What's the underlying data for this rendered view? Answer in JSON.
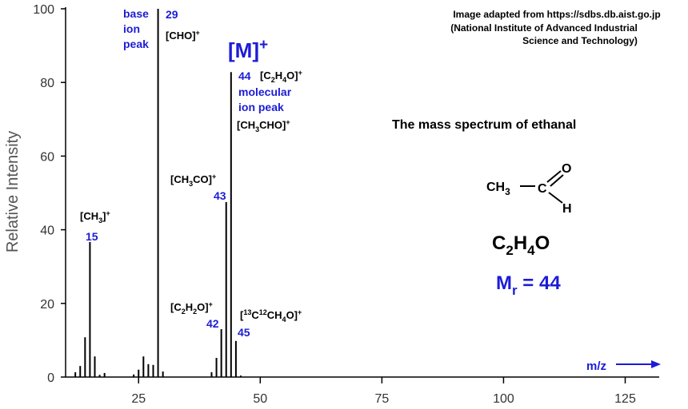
{
  "chart_data": {
    "type": "bar",
    "color": "#000000",
    "y_label": "Relative Intensity",
    "x": [
      12,
      13,
      14,
      15,
      16,
      17,
      18,
      24,
      25,
      26,
      27,
      28,
      29,
      30,
      40,
      41,
      42,
      43,
      44,
      45,
      46
    ],
    "values": [
      1.3,
      3,
      10.8,
      36.7,
      5.6,
      0.6,
      1.1,
      0.7,
      2,
      5.6,
      3.5,
      3.3,
      100,
      1.5,
      1.3,
      5.2,
      13,
      47.5,
      82.8,
      9.8,
      0.4
    ],
    "xlim": [
      10,
      131
    ],
    "xticks": [
      25,
      50,
      75,
      100,
      125
    ],
    "ylim": [
      0,
      100
    ],
    "yticks": [
      0,
      20,
      40,
      60,
      80,
      100
    ],
    "annotations": [
      {
        "parts": [
          [
            "base",
            "base"
          ]
        ],
        "color": "#1c1cd6"
      },
      {
        "parts": [
          [
            "ion",
            "base"
          ]
        ],
        "color": "#1c1cd6"
      },
      {
        "parts": [
          [
            "peak",
            "base"
          ]
        ],
        "color": "#1c1cd6"
      },
      {
        "parts": [
          [
            "29",
            "base"
          ]
        ],
        "color": "#1c1cd6"
      },
      {
        "parts": [
          [
            "[CHO]",
            "base"
          ],
          [
            "+",
            "sup"
          ]
        ],
        "color": "#000000"
      },
      {
        "parts": [
          [
            "[M]",
            "base"
          ],
          [
            "+",
            "sup"
          ]
        ],
        "color": "#1c1cd6"
      },
      {
        "parts": [
          [
            "44",
            "base"
          ]
        ],
        "color": "#1c1cd6"
      },
      {
        "parts": [
          [
            "[C",
            "base"
          ],
          [
            "2",
            "sub"
          ],
          [
            "H",
            "base"
          ],
          [
            "4",
            "sub"
          ],
          [
            "O]",
            "base"
          ],
          [
            "+",
            "sup"
          ]
        ],
        "color": "#000000"
      },
      {
        "parts": [
          [
            "molecular",
            "base"
          ]
        ],
        "color": "#1c1cd6"
      },
      {
        "parts": [
          [
            "ion peak",
            "base"
          ]
        ],
        "color": "#1c1cd6"
      },
      {
        "parts": [
          [
            "[CH",
            "base"
          ],
          [
            "3",
            "sub"
          ],
          [
            "CHO]",
            "base"
          ],
          [
            "+",
            "sup"
          ]
        ],
        "color": "#000000"
      },
      {
        "parts": [
          [
            "[CH",
            "base"
          ],
          [
            "3",
            "sub"
          ],
          [
            "CO]",
            "base"
          ],
          [
            "+",
            "sup"
          ]
        ],
        "color": "#000000"
      },
      {
        "parts": [
          [
            "43",
            "base"
          ]
        ],
        "color": "#1c1cd6"
      },
      {
        "parts": [
          [
            "[CH",
            "base"
          ],
          [
            "3",
            "sub"
          ],
          [
            "]",
            "base"
          ],
          [
            "+",
            "sup"
          ]
        ],
        "color": "#000000"
      },
      {
        "parts": [
          [
            "15",
            "base"
          ]
        ],
        "color": "#1c1cd6"
      },
      {
        "parts": [
          [
            "[C",
            "base"
          ],
          [
            "2",
            "sub"
          ],
          [
            "H",
            "base"
          ],
          [
            "2",
            "sub"
          ],
          [
            "O]",
            "base"
          ],
          [
            "+",
            "sup"
          ]
        ],
        "color": "#000000"
      },
      {
        "parts": [
          [
            "42",
            "base"
          ]
        ],
        "color": "#1c1cd6"
      },
      {
        "parts": [
          [
            "[",
            "base"
          ],
          [
            "13",
            "sup"
          ],
          [
            "C",
            "base"
          ],
          [
            "12",
            "sup"
          ],
          [
            "CH",
            "base"
          ],
          [
            "4",
            "sub"
          ],
          [
            "O]",
            "base"
          ],
          [
            "+",
            "sup"
          ]
        ],
        "color": "#000000"
      },
      {
        "parts": [
          [
            "45",
            "base"
          ]
        ],
        "color": "#1c1cd6"
      },
      {
        "parts": [
          [
            "Image adapted from https://sdbs.db.aist.go.jp",
            "base"
          ]
        ],
        "color": "#000000"
      },
      {
        "parts": [
          [
            "(National Institute of Advanced Industrial",
            "base"
          ]
        ],
        "color": "#000000"
      },
      {
        "parts": [
          [
            "Science and Technology)",
            "base"
          ]
        ],
        "color": "#000000"
      },
      {
        "parts": [
          [
            "The mass spectrum of ethanal",
            "base"
          ]
        ],
        "color": "#000000"
      },
      {
        "parts": [
          [
            "CH",
            "base"
          ],
          [
            "3",
            "sub"
          ]
        ],
        "color": "#000000"
      },
      {
        "parts": [
          [
            "C",
            "base"
          ]
        ],
        "color": "#000000"
      },
      {
        "parts": [
          [
            "O",
            "base"
          ]
        ],
        "color": "#000000"
      },
      {
        "parts": [
          [
            "H",
            "base"
          ]
        ],
        "color": "#000000"
      },
      {
        "parts": [
          [
            "C",
            "base"
          ],
          [
            "2",
            "sub"
          ],
          [
            "H",
            "base"
          ],
          [
            "4",
            "sub"
          ],
          [
            "O",
            "base"
          ]
        ],
        "color": "#000000"
      },
      {
        "parts": [
          [
            "M",
            "base"
          ],
          [
            "r",
            "sub"
          ],
          [
            " = 44",
            "base"
          ]
        ],
        "color": "#1c1cd6"
      },
      {
        "parts": [
          [
            "m/z",
            "base"
          ]
        ],
        "color": "#1c1cd6"
      }
    ]
  }
}
